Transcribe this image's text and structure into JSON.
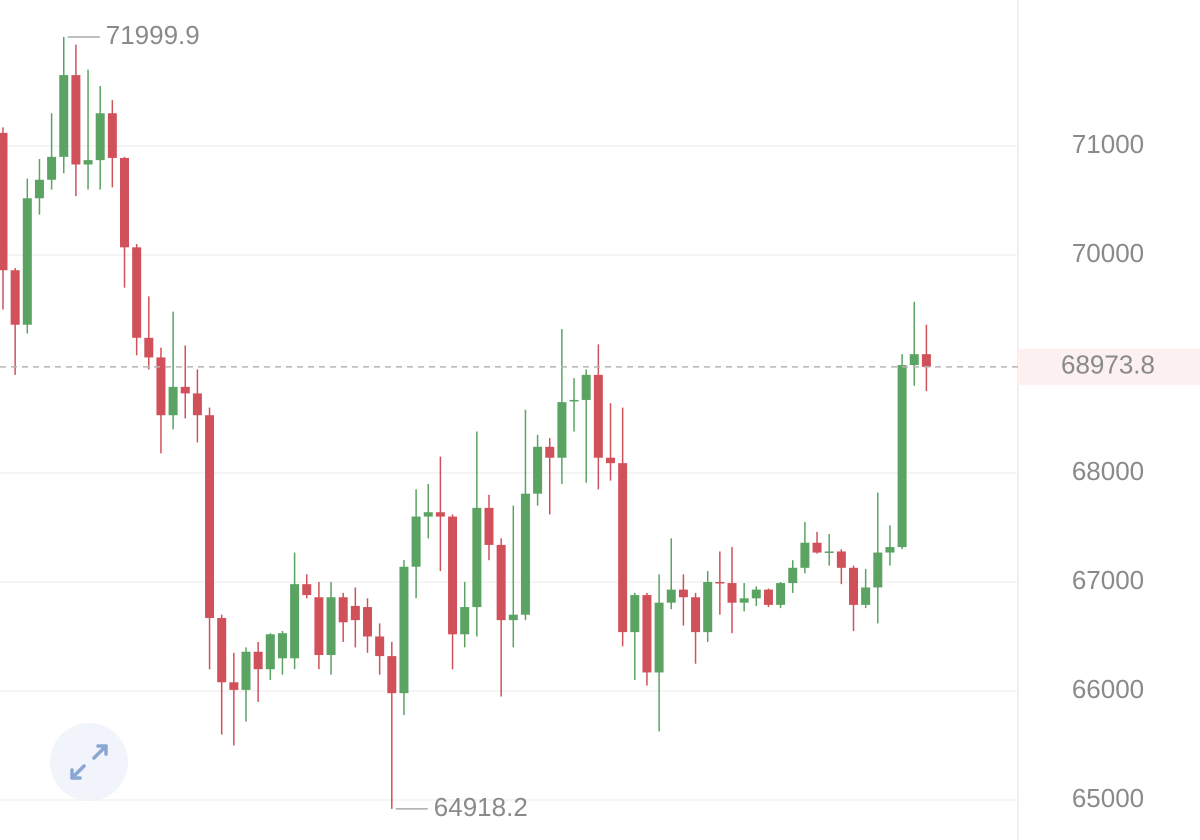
{
  "chart_data": {
    "type": "candlestick",
    "up_color": "#5aa362",
    "down_color": "#d0515a",
    "open": [
      71120,
      69860,
      69360,
      70520,
      70690,
      70900,
      71650,
      70830,
      70870,
      71300,
      70890,
      70070,
      69240,
      69060,
      68530,
      68790,
      68730,
      68530,
      66670,
      66080,
      66010,
      66360,
      66200,
      66300,
      66300,
      66980,
      66860,
      66330,
      66860,
      66780,
      66770,
      66500,
      66320,
      65980,
      67140,
      67600,
      67640,
      67600,
      66520,
      66770,
      67680,
      67340,
      66650,
      66700,
      67810,
      68240,
      68140,
      68660,
      68670,
      68900,
      68140,
      68090,
      66540,
      66880,
      66170,
      66810,
      66930,
      66860,
      66540,
      67000,
      66990,
      66810,
      66850,
      66930,
      66790,
      66990,
      67130,
      67360,
      67270,
      67280,
      67130,
      66790,
      66950,
      67270,
      67320,
      68990,
      69090
    ],
    "high": [
      71170,
      69880,
      70700,
      70880,
      71300,
      71999.9,
      71930,
      71700,
      71550,
      71420,
      70900,
      70100,
      69620,
      69150,
      69480,
      69170,
      68950,
      68600,
      66700,
      66350,
      66400,
      66450,
      66530,
      66550,
      67270,
      67070,
      67000,
      67000,
      66900,
      66950,
      66850,
      66620,
      66450,
      67200,
      67850,
      67900,
      68150,
      67620,
      67000,
      68380,
      67800,
      67400,
      67700,
      68580,
      68350,
      68320,
      69320,
      68870,
      68950,
      69180,
      68640,
      68600,
      66900,
      66900,
      67070,
      67400,
      67070,
      66900,
      67100,
      67280,
      67320,
      66990,
      66960,
      66940,
      67000,
      67200,
      67550,
      67460,
      67440,
      67300,
      67150,
      67120,
      67820,
      67520,
      69090,
      69570,
      69360
    ],
    "low": [
      69500,
      68900,
      69280,
      70370,
      70600,
      70750,
      70540,
      70600,
      70600,
      70620,
      69700,
      69080,
      68950,
      68180,
      68400,
      68500,
      68280,
      66200,
      65600,
      65500,
      65720,
      65900,
      66100,
      66150,
      66200,
      66850,
      66200,
      66150,
      66450,
      66400,
      66350,
      66150,
      64918.2,
      65780,
      66850,
      67400,
      67100,
      66200,
      66400,
      66500,
      67200,
      65950,
      66400,
      66650,
      67700,
      67620,
      67900,
      68380,
      67910,
      67850,
      67930,
      66410,
      66100,
      66050,
      65630,
      66750,
      66600,
      66250,
      66450,
      66700,
      66530,
      66730,
      66780,
      66770,
      66760,
      66900,
      67080,
      67260,
      67150,
      66980,
      66550,
      66760,
      66620,
      67150,
      67300,
      68800,
      68750
    ],
    "close": [
      69860,
      69360,
      70520,
      70690,
      70900,
      71650,
      70830,
      70870,
      71300,
      70890,
      70070,
      69240,
      69060,
      68530,
      68790,
      68730,
      68530,
      66670,
      66080,
      66010,
      66360,
      66200,
      66520,
      66530,
      66980,
      66880,
      66330,
      66860,
      66630,
      66650,
      66500,
      66320,
      65980,
      67140,
      67600,
      67640,
      67600,
      66520,
      66770,
      67680,
      67340,
      66650,
      66700,
      67810,
      68240,
      68140,
      68650,
      68670,
      68900,
      68140,
      68090,
      66540,
      66880,
      66170,
      66810,
      66930,
      66860,
      66540,
      67000,
      66990,
      66810,
      66850,
      66930,
      66790,
      66990,
      67130,
      67360,
      67270,
      67280,
      67130,
      66790,
      66950,
      67270,
      67320,
      68990,
      69090,
      68973.8
    ],
    "ylim": [
      64633,
      72339
    ],
    "yticks": [
      65000,
      66000,
      67000,
      68000,
      70000,
      71000
    ],
    "grid": true,
    "high_label": {
      "value": 71999.9,
      "label": "71999.9"
    },
    "low_label": {
      "value": 64918.2,
      "label": "64918.2"
    },
    "last_price": {
      "value": 68973.8,
      "label": "68973.8"
    }
  }
}
